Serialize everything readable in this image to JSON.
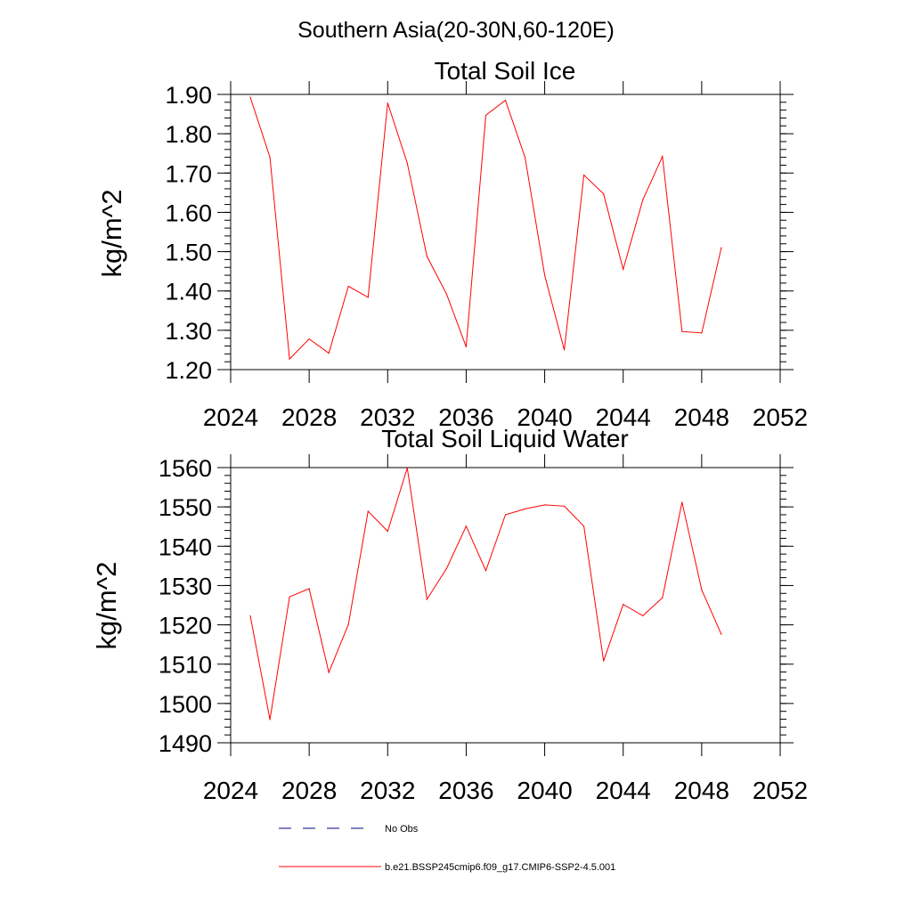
{
  "figure_title": "Southern Asia(20-30N,60-120E)",
  "colors": {
    "model": "#ff0000",
    "obs": "#000080",
    "axes": "#000000"
  },
  "legend": {
    "obs_label": "No Obs",
    "model_label": "b.e21.BSSP245cmip6.f09_g17.CMIP6-SSP2-4.5.001"
  },
  "chart_data": [
    {
      "type": "line",
      "title": "Total Soil Ice",
      "xlabel": "",
      "ylabel": "kg/m^2",
      "xlim": [
        2024,
        2052
      ],
      "ylim": [
        1.2,
        1.9
      ],
      "xticks": [
        "2024",
        "2028",
        "2032",
        "2036",
        "2040",
        "2044",
        "2048",
        "2052"
      ],
      "yticks": [
        "1.20",
        "1.30",
        "1.40",
        "1.50",
        "1.60",
        "1.70",
        "1.80",
        "1.90"
      ],
      "grid": false,
      "x": [
        2025,
        2026,
        2027,
        2028,
        2029,
        2030,
        2031,
        2032,
        2033,
        2034,
        2035,
        2036,
        2037,
        2038,
        2039,
        2040,
        2041,
        2042,
        2043,
        2044,
        2045,
        2046,
        2047,
        2048,
        2049
      ],
      "series": [
        {
          "values": [
            1.893,
            1.74,
            1.227,
            1.278,
            1.242,
            1.412,
            1.384,
            1.878,
            1.725,
            1.488,
            1.392,
            1.258,
            1.847,
            1.885,
            1.74,
            1.44,
            1.25,
            1.695,
            1.647,
            1.455,
            1.632,
            1.742,
            1.297,
            1.293,
            1.51
          ]
        }
      ]
    },
    {
      "type": "line",
      "title": "Total Soil Liquid Water",
      "xlabel": "",
      "ylabel": "kg/m^2",
      "xlim": [
        2024,
        2052
      ],
      "ylim": [
        1490,
        1560
      ],
      "xticks": [
        "2024",
        "2028",
        "2032",
        "2036",
        "2040",
        "2044",
        "2048",
        "2052"
      ],
      "yticks": [
        "1490",
        "1500",
        "1510",
        "1520",
        "1530",
        "1540",
        "1550",
        "1560"
      ],
      "grid": false,
      "x": [
        2025,
        2026,
        2027,
        2028,
        2029,
        2030,
        2031,
        2032,
        2033,
        2034,
        2035,
        2036,
        2037,
        2038,
        2039,
        2040,
        2041,
        2042,
        2043,
        2044,
        2045,
        2046,
        2047,
        2048,
        2049
      ],
      "series": [
        {
          "values": [
            1522.3,
            1495.9,
            1527.1,
            1529.2,
            1507.9,
            1520.1,
            1548.9,
            1543.8,
            1559.9,
            1526.5,
            1534.3,
            1545.1,
            1533.8,
            1548.0,
            1549.5,
            1550.5,
            1550.2,
            1545.1,
            1510.8,
            1525.2,
            1522.3,
            1526.9,
            1551.2,
            1528.9,
            1517.6
          ]
        }
      ]
    }
  ]
}
